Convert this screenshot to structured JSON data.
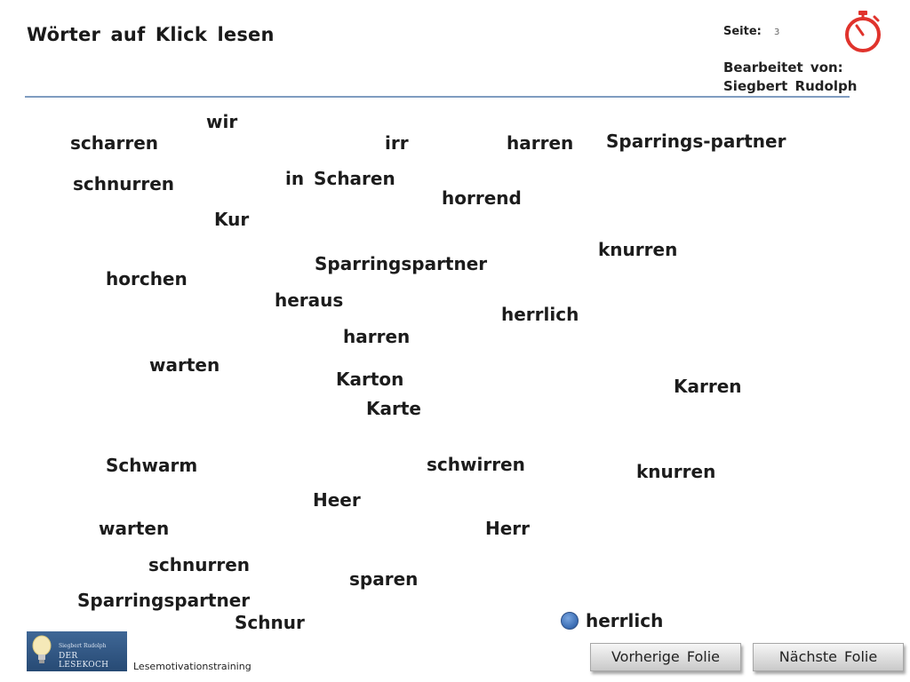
{
  "header": {
    "title": "Wörter auf Klick lesen",
    "page_label": "Seite:",
    "page_number": "3",
    "edited_by_label": "Bearbeitet von:",
    "edited_by_name": "Siegbert Rudolph",
    "timer_icon": "stopwatch-icon",
    "accent_color": "#e0332c"
  },
  "words": [
    "wir",
    "scharren",
    "irr",
    "harren",
    "Sparrings-partner",
    "schnurren",
    "in Scharen",
    "horrend",
    "Kur",
    "knurren",
    "Sparringspartner",
    "horchen",
    "heraus",
    "herrlich",
    "harren",
    "warten",
    "Karton",
    "Karren",
    "Karte",
    "Schwarm",
    "schwirren",
    "knurren",
    "Heer",
    "warten",
    "Herr",
    "schnurren",
    "sparen",
    "Sparringspartner",
    "Schnur",
    "herrlich"
  ],
  "marker": {
    "icon": "blue-dot-icon",
    "color": "#3d6fb5"
  },
  "footer": {
    "logo_author": "Siegbert Rudolph",
    "logo_brand": "DER LESEKOCH",
    "label": "Lesemotivationstraining",
    "prev_button": "Vorherige Folie",
    "next_button": "Nächste Folie"
  }
}
